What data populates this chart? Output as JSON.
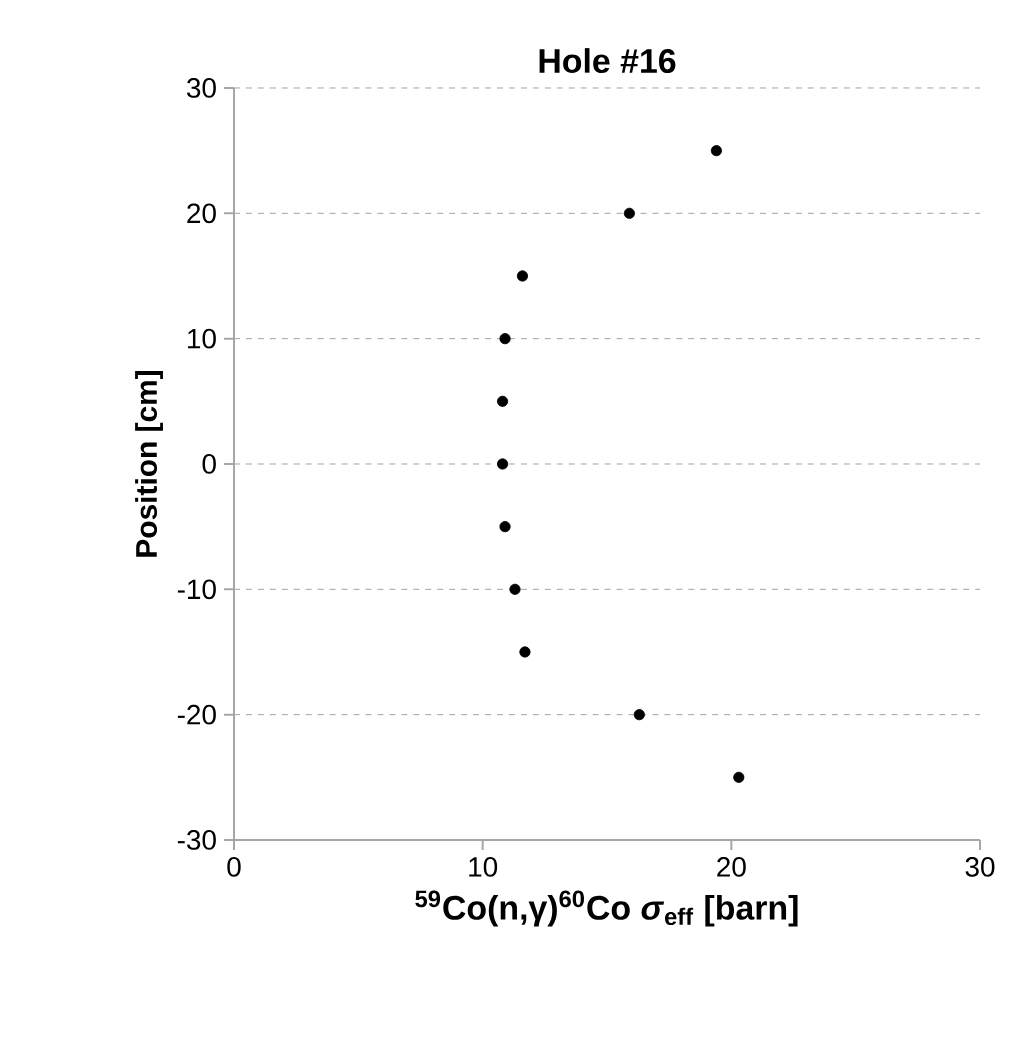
{
  "chart_data": {
    "type": "scatter",
    "title": "Hole #16",
    "xlabel": "$^{59}$Co(n,γ)$^{60}$Co *σ*$_{eff}$ [barn]",
    "ylabel": "Position [cm]",
    "series": [
      {
        "color": "#000000",
        "x": [
          19.4,
          15.9,
          11.6,
          10.9,
          10.8,
          10.8,
          10.9,
          11.3,
          11.7,
          16.3,
          20.3
        ],
        "values": [
          25,
          20,
          15,
          10,
          5,
          0,
          -5,
          -10,
          -15,
          -20,
          -25
        ]
      }
    ],
    "xlim": [
      0,
      30
    ],
    "ylim": [
      -30,
      30
    ],
    "xticks": [
      0,
      10,
      20,
      30
    ],
    "yticks": [
      -30,
      -20,
      -10,
      0,
      10,
      20,
      30
    ],
    "grid": "y",
    "marker": "circle"
  }
}
